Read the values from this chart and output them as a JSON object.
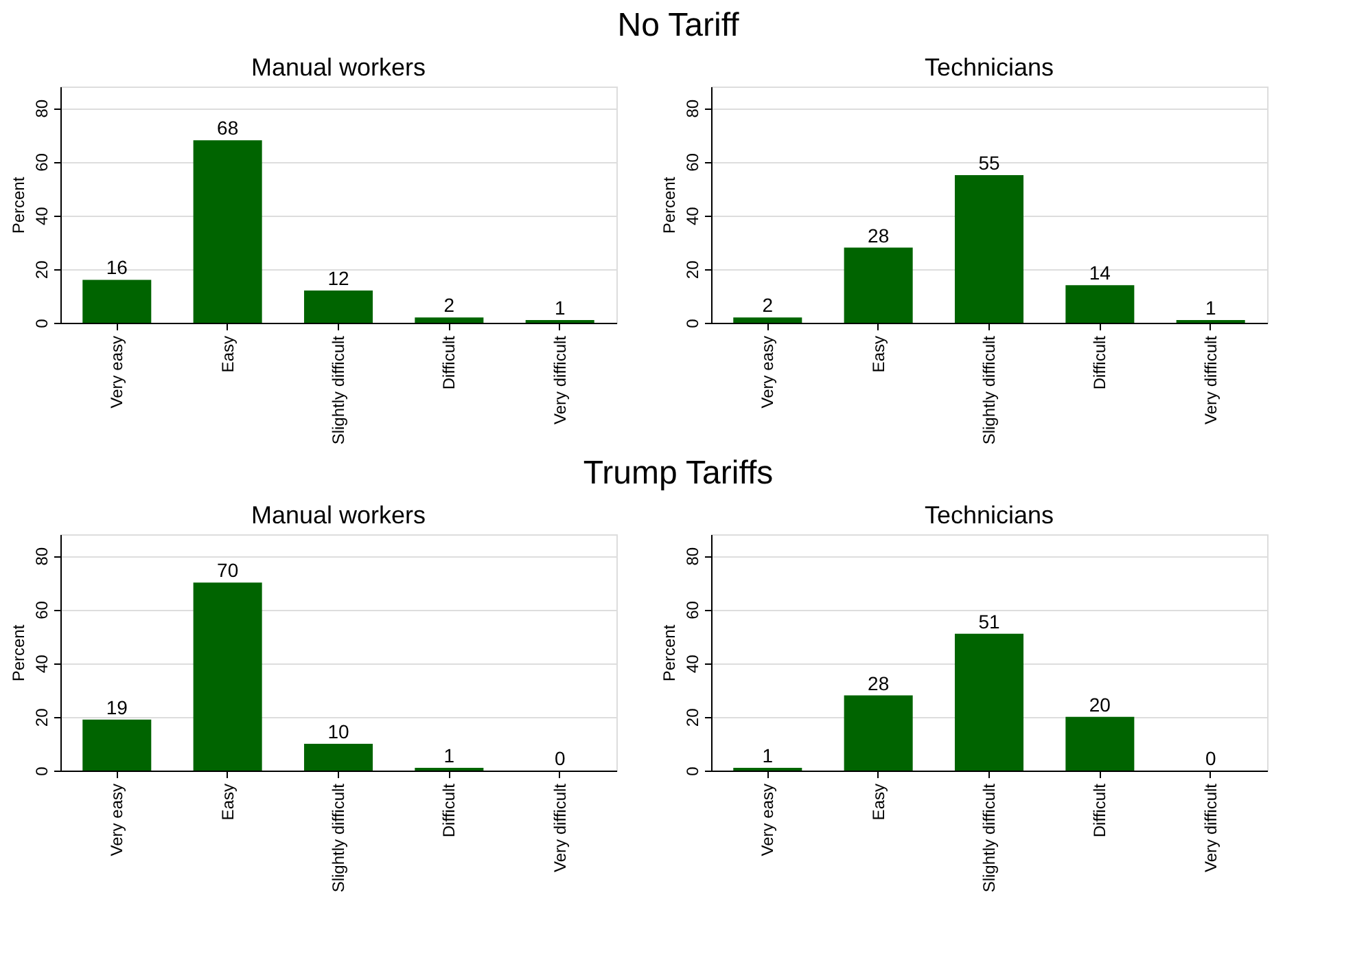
{
  "chart_data": [
    {
      "type": "other",
      "title": "No Tariff"
    },
    {
      "type": "bar",
      "title": "Manual workers",
      "ylabel": "Percent",
      "categories": [
        "Very easy",
        "Easy",
        "Slightly difficult",
        "Difficult",
        "Very difficult"
      ],
      "values": [
        16,
        68,
        12,
        2,
        1
      ],
      "color": "#006400",
      "ylim": [
        0,
        88
      ],
      "yticks": [
        0,
        20,
        40,
        60,
        80
      ],
      "grid": "y",
      "data_labels": true
    },
    {
      "type": "bar",
      "title": "Technicians",
      "ylabel": "Percent",
      "categories": [
        "Very easy",
        "Easy",
        "Slightly difficult",
        "Difficult",
        "Very difficult"
      ],
      "values": [
        2,
        28,
        55,
        14,
        1
      ],
      "color": "#006400",
      "ylim": [
        0,
        88
      ],
      "yticks": [
        0,
        20,
        40,
        60,
        80
      ],
      "grid": "y",
      "data_labels": true
    },
    {
      "type": "other",
      "title": "Trump Tariffs"
    },
    {
      "type": "bar",
      "title": "Manual workers",
      "ylabel": "Percent",
      "categories": [
        "Very easy",
        "Easy",
        "Slightly difficult",
        "Difficult",
        "Very difficult"
      ],
      "values": [
        19,
        70,
        10,
        1,
        0
      ],
      "color": "#006400",
      "ylim": [
        0,
        88
      ],
      "yticks": [
        0,
        20,
        40,
        60,
        80
      ],
      "grid": "y",
      "data_labels": true
    },
    {
      "type": "bar",
      "title": "Technicians",
      "ylabel": "Percent",
      "categories": [
        "Very easy",
        "Easy",
        "Slightly difficult",
        "Difficult",
        "Very difficult"
      ],
      "values": [
        1,
        28,
        51,
        20,
        0
      ],
      "color": "#006400",
      "ylim": [
        0,
        88
      ],
      "yticks": [
        0,
        20,
        40,
        60,
        80
      ],
      "grid": "y",
      "data_labels": true
    }
  ]
}
